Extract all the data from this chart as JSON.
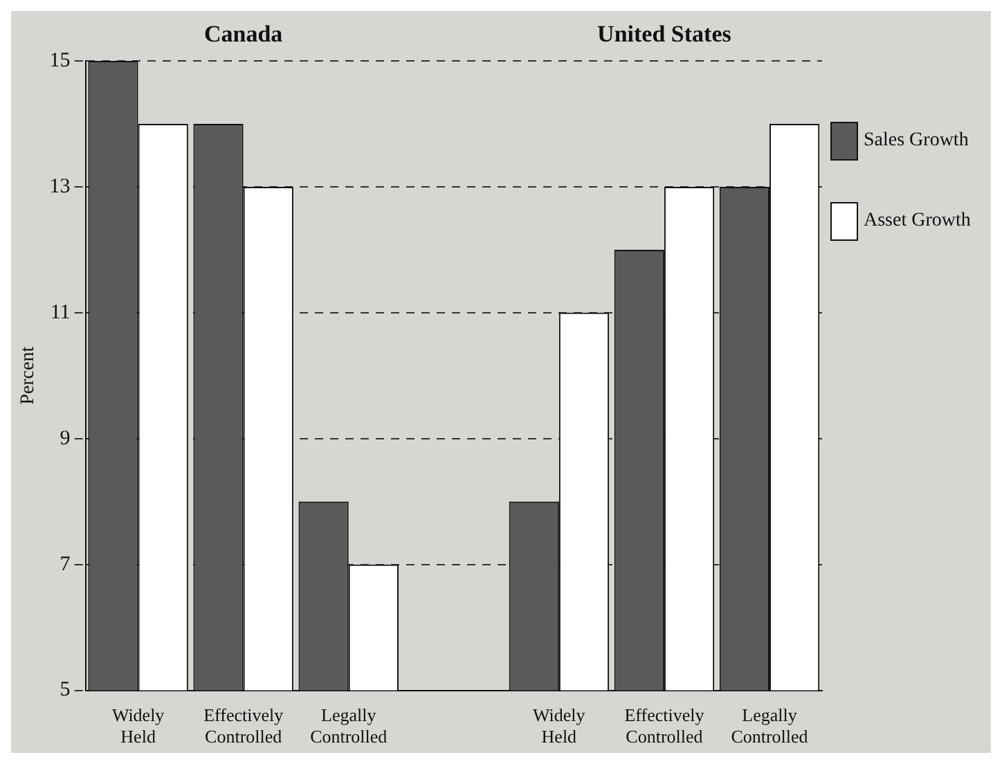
{
  "chart_data": {
    "type": "bar",
    "ylabel": "Percent",
    "categories": [
      "Widely Held",
      "Effectively Controlled",
      "Legally Controlled",
      null,
      "Widely Held",
      "Effectively Controlled",
      "Legally Controlled"
    ],
    "series": [
      {
        "name": "Sales Growth",
        "color": "#5a5a5a",
        "values": [
          15,
          14,
          8,
          null,
          8,
          12,
          13
        ]
      },
      {
        "name": "Asset Growth",
        "color": "#ffffff",
        "values": [
          14,
          13,
          7,
          null,
          11,
          13,
          14
        ]
      }
    ],
    "ylim": [
      5,
      15
    ],
    "yticks": [
      5,
      7,
      9,
      11,
      13,
      15
    ],
    "grid": "y",
    "line_style": "dashed",
    "legend": "right",
    "annotations": [
      "Canada",
      "United States"
    ]
  }
}
